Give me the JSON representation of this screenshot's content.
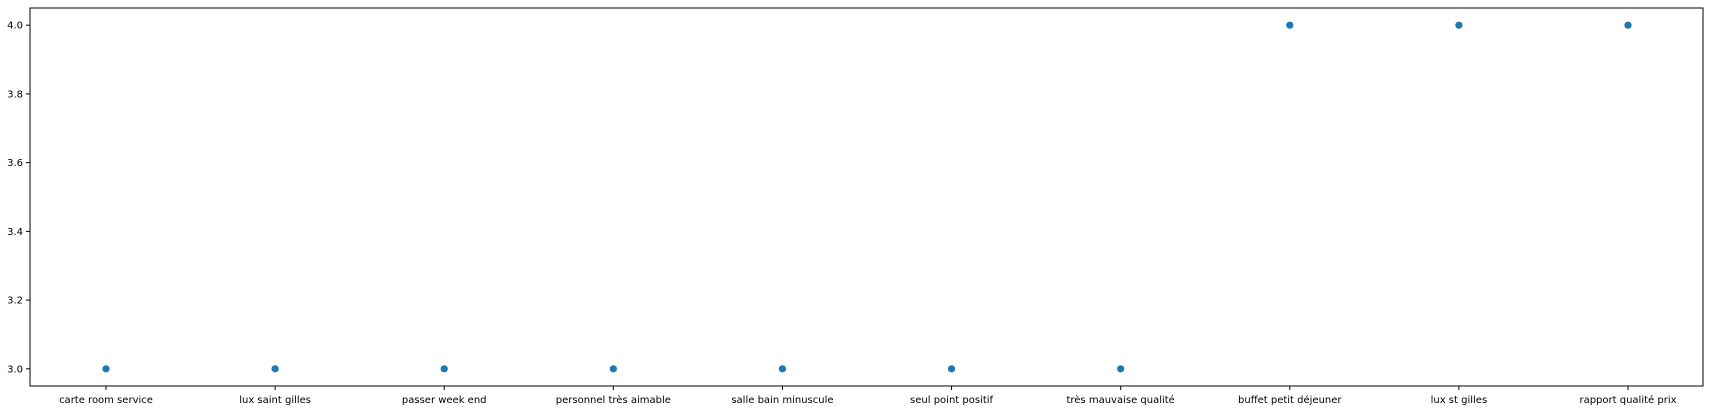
{
  "chart_data": {
    "type": "scatter",
    "title": "",
    "xlabel": "",
    "ylabel": "",
    "categories": [
      "carte room service",
      "lux saint gilles",
      "passer week end",
      "personnel très aimable",
      "salle bain minuscule",
      "seul point positif",
      "très mauvaise qualité",
      "buffet petit déjeuner",
      "lux st gilles",
      "rapport qualité prix"
    ],
    "values": [
      3,
      3,
      3,
      3,
      3,
      3,
      3,
      4,
      4,
      4
    ],
    "ylim": [
      2.95,
      4.05
    ],
    "yticks": [
      3.0,
      3.2,
      3.4,
      3.6,
      3.8,
      4.0
    ],
    "ytick_labels": [
      "3.0",
      "3.2",
      "3.4",
      "3.6",
      "3.8",
      "4.0"
    ],
    "grid": false,
    "legend": "none",
    "marker_color": "#1f77b4"
  }
}
